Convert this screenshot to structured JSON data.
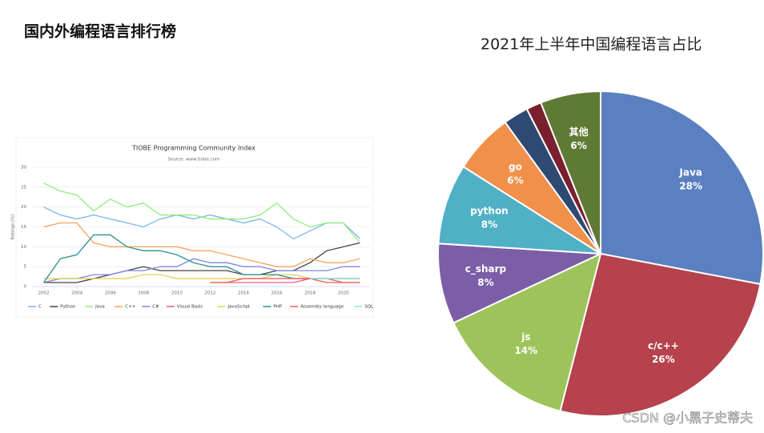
{
  "header": {
    "title": "国内外编程语言排行榜"
  },
  "watermark": "CSDN @小黑子史蒂夫",
  "chart_data": [
    {
      "type": "line",
      "title": "TIOBE Programming Community Index",
      "subtitle": "Source: www.tiobe.com",
      "y_label": "Ratings (%)",
      "x": [
        2002,
        2003,
        2004,
        2005,
        2006,
        2007,
        2008,
        2009,
        2010,
        2011,
        2012,
        2013,
        2014,
        2015,
        2016,
        2017,
        2018,
        2019,
        2020,
        2021
      ],
      "xlim": [
        2001.3,
        2021.6
      ],
      "xticks": [
        2002,
        2004,
        2006,
        2008,
        2010,
        2012,
        2014,
        2016,
        2018,
        2020
      ],
      "ylim": [
        0,
        30
      ],
      "yticks": [
        0,
        5,
        10,
        15,
        20,
        25,
        30
      ],
      "grid": true,
      "legend": "bottom",
      "series": [
        {
          "name": "C",
          "color": "#7cb5ec",
          "values": [
            20,
            18,
            17,
            18,
            17,
            16,
            15,
            17,
            18,
            17,
            18,
            17,
            16,
            17,
            15,
            12,
            14,
            16,
            16,
            12
          ]
        },
        {
          "name": "Python",
          "color": "#434348",
          "values": [
            1,
            1,
            1,
            2,
            3,
            4,
            5,
            4,
            4,
            4,
            4,
            4,
            3,
            3,
            4,
            4,
            6,
            9,
            10,
            11
          ]
        },
        {
          "name": "Java",
          "color": "#90ed7d",
          "values": [
            26,
            24,
            23,
            19,
            22,
            20,
            21,
            18,
            18,
            18,
            17,
            17,
            17,
            18,
            21,
            17,
            15,
            16,
            16,
            11
          ]
        },
        {
          "name": "C++",
          "color": "#f7a35c",
          "values": [
            15,
            16,
            16,
            11,
            10,
            10,
            10,
            10,
            10,
            9,
            9,
            8,
            7,
            6,
            5,
            5,
            7,
            6,
            6,
            7
          ]
        },
        {
          "name": "C#",
          "color": "#8085e9",
          "values": [
            1,
            2,
            2,
            3,
            3,
            4,
            4,
            5,
            5,
            7,
            6,
            6,
            5,
            5,
            4,
            4,
            4,
            4,
            5,
            5
          ]
        },
        {
          "name": "Visual Basic",
          "color": "#f15c80",
          "values": [
            null,
            null,
            null,
            null,
            null,
            null,
            null,
            null,
            null,
            null,
            1,
            1,
            1,
            1,
            1,
            1,
            2,
            2,
            1,
            1
          ]
        },
        {
          "name": "JavaScript",
          "color": "#e4d354",
          "values": [
            2,
            2,
            2,
            2,
            2,
            2,
            3,
            3,
            2,
            2,
            2,
            2,
            2,
            2,
            3,
            3,
            2,
            2,
            2,
            2
          ]
        },
        {
          "name": "PHP",
          "color": "#2b908f",
          "values": [
            1,
            7,
            8,
            13,
            13,
            10,
            9,
            9,
            8,
            6,
            5,
            5,
            3,
            3,
            3,
            2,
            2,
            2,
            2,
            2
          ]
        },
        {
          "name": "Assembly language",
          "color": "#f45b5b",
          "values": [
            null,
            null,
            null,
            null,
            null,
            null,
            null,
            null,
            null,
            null,
            1,
            1,
            2,
            2,
            2,
            2,
            2,
            1,
            1,
            1
          ]
        },
        {
          "name": "SQL",
          "color": "#91e8e1",
          "values": [
            null,
            null,
            null,
            null,
            null,
            null,
            null,
            null,
            null,
            null,
            null,
            null,
            null,
            null,
            null,
            null,
            2,
            2,
            2,
            2
          ]
        }
      ]
    },
    {
      "type": "pie",
      "title": "2021年上半年中国编程语言占比",
      "categories": [
        "Java",
        "c/c++",
        "js",
        "c_sharp",
        "python",
        "go",
        null,
        null,
        "其他"
      ],
      "values": [
        28,
        26,
        14,
        8,
        8,
        6,
        2.5,
        1.5,
        6
      ],
      "value_labels": [
        "28%",
        "26%",
        "14%",
        "8%",
        "8%",
        "6%",
        null,
        null,
        "6%"
      ],
      "colors": [
        "#5b80c0",
        "#b5424c",
        "#9dc45a",
        "#7b5ea7",
        "#4fb0c6",
        "#f0904a",
        "#2e4a73",
        "#7a1f2e",
        "#5f7a35"
      ]
    }
  ]
}
